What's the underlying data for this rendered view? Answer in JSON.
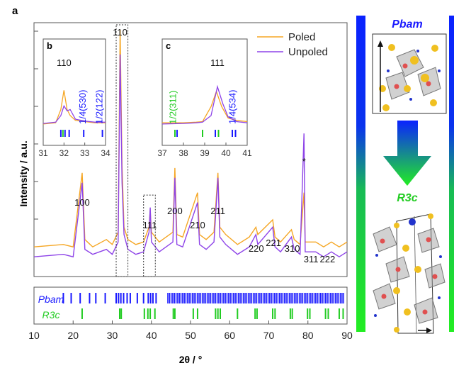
{
  "chart_data": {
    "type": "line",
    "panel_letter": "a",
    "xlabel": "2θ / °",
    "ylabel": "Intensity / a.u.",
    "xlim": [
      10,
      90
    ],
    "x_ticks": [
      "10",
      "20",
      "30",
      "40",
      "50",
      "60",
      "70",
      "80",
      "90"
    ],
    "grid": false,
    "legend": {
      "position": "top-right",
      "entries": [
        {
          "name": "Poled",
          "color": "#f5a623"
        },
        {
          "name": "Unpoled",
          "color": "#8e44e8"
        }
      ]
    },
    "series": [
      {
        "name": "Poled",
        "color": "#f5a623",
        "points": [
          [
            10,
            0.12
          ],
          [
            17.5,
            0.13
          ],
          [
            20,
            0.12
          ],
          [
            22.3,
            0.42
          ],
          [
            23,
            0.15
          ],
          [
            25,
            0.12
          ],
          [
            28.5,
            0.15
          ],
          [
            30,
            0.13
          ],
          [
            31.5,
            0.18
          ],
          [
            32,
            1.0
          ],
          [
            32.5,
            0.45
          ],
          [
            33,
            0.2
          ],
          [
            34,
            0.15
          ],
          [
            36,
            0.13
          ],
          [
            38,
            0.14
          ],
          [
            39.4,
            0.2
          ],
          [
            39.7,
            0.27
          ],
          [
            40,
            0.18
          ],
          [
            42,
            0.14
          ],
          [
            45.5,
            0.18
          ],
          [
            46,
            0.44
          ],
          [
            46.5,
            0.17
          ],
          [
            48,
            0.16
          ],
          [
            51.8,
            0.34
          ],
          [
            52.3,
            0.17
          ],
          [
            54,
            0.15
          ],
          [
            56,
            0.18
          ],
          [
            57,
            0.42
          ],
          [
            57.5,
            0.2
          ],
          [
            59,
            0.17
          ],
          [
            62,
            0.13
          ],
          [
            65,
            0.16
          ],
          [
            66.7,
            0.2
          ],
          [
            67.2,
            0.17
          ],
          [
            71,
            0.23
          ],
          [
            71.6,
            0.16
          ],
          [
            73,
            0.14
          ],
          [
            75.8,
            0.19
          ],
          [
            76.5,
            0.15
          ],
          [
            78,
            0.13
          ],
          [
            79,
            0.34
          ],
          [
            79.3,
            0.14
          ],
          [
            82,
            0.14
          ],
          [
            84,
            0.12
          ],
          [
            86,
            0.14
          ],
          [
            88,
            0.12
          ],
          [
            90,
            0.14
          ]
        ]
      },
      {
        "name": "Unpoled",
        "color": "#8e44e8",
        "points": [
          [
            10,
            0.08
          ],
          [
            17.5,
            0.09
          ],
          [
            20,
            0.08
          ],
          [
            22.3,
            0.38
          ],
          [
            23,
            0.11
          ],
          [
            25,
            0.09
          ],
          [
            28.5,
            0.11
          ],
          [
            30,
            0.09
          ],
          [
            31.5,
            0.14
          ],
          [
            32,
            0.9
          ],
          [
            32.5,
            0.38
          ],
          [
            33,
            0.17
          ],
          [
            34,
            0.11
          ],
          [
            36,
            0.09
          ],
          [
            38,
            0.1
          ],
          [
            39.4,
            0.18
          ],
          [
            39.7,
            0.28
          ],
          [
            40,
            0.14
          ],
          [
            42,
            0.1
          ],
          [
            45.5,
            0.14
          ],
          [
            46,
            0.4
          ],
          [
            46.5,
            0.13
          ],
          [
            48,
            0.12
          ],
          [
            51.8,
            0.3
          ],
          [
            52.3,
            0.13
          ],
          [
            54,
            0.11
          ],
          [
            56,
            0.14
          ],
          [
            57,
            0.4
          ],
          [
            57.5,
            0.16
          ],
          [
            59,
            0.13
          ],
          [
            62,
            0.09
          ],
          [
            65,
            0.12
          ],
          [
            66.7,
            0.17
          ],
          [
            67.2,
            0.13
          ],
          [
            71,
            0.2
          ],
          [
            71.6,
            0.12
          ],
          [
            73,
            0.1
          ],
          [
            75.8,
            0.16
          ],
          [
            76.5,
            0.11
          ],
          [
            78,
            0.09
          ],
          [
            79,
            0.58
          ],
          [
            79.3,
            0.1
          ],
          [
            82,
            0.1
          ],
          [
            84,
            0.08
          ],
          [
            86,
            0.1
          ],
          [
            88,
            0.08
          ],
          [
            90,
            0.1
          ]
        ]
      }
    ],
    "peak_labels": [
      {
        "text": "100",
        "x": 22.3
      },
      {
        "text": "110",
        "x": 32.0
      },
      {
        "text": "111",
        "x": 39.6
      },
      {
        "text": "200",
        "x": 46.0
      },
      {
        "text": "210",
        "x": 51.8
      },
      {
        "text": "211",
        "x": 57.0
      },
      {
        "text": "220",
        "x": 66.8
      },
      {
        "text": "221",
        "x": 71.2
      },
      {
        "text": "310",
        "x": 76.0
      },
      {
        "text": "*",
        "x": 79.0
      },
      {
        "text": "311",
        "x": 80.8
      },
      {
        "text": "222",
        "x": 85.0
      }
    ],
    "reference_patterns": [
      {
        "name": "Pbam",
        "color": "#1a1aff",
        "positions": [
          17.5,
          19.5,
          21.8,
          24.2,
          25.8,
          28.2,
          31.0,
          31.6,
          32.2,
          32.9,
          33.8,
          34.6,
          36.4,
          38.0,
          39.2,
          39.8,
          40.4,
          41.2
        ]
      },
      {
        "name": "R3c",
        "color": "#22cc22",
        "positions": [
          22.3,
          31.9,
          32.3,
          38.2,
          39.1,
          39.7,
          40.9,
          45.6,
          46.0,
          50.7,
          51.8,
          56.4,
          57.0,
          57.6,
          62.0,
          66.5,
          67.0,
          71.0,
          71.6,
          75.5,
          76.0,
          79.9,
          80.5,
          84.5,
          85.2,
          88.0,
          89.0
        ]
      }
    ],
    "insets": [
      {
        "letter": "b",
        "xlim": [
          31,
          34
        ],
        "x_ticks": [
          "31",
          "32",
          "33",
          "34"
        ],
        "labels": [
          {
            "text": "110",
            "color": "#111111"
          },
          {
            "text": "1/4(530)",
            "color": "#1a1aff"
          },
          {
            "text": "1/2(122)",
            "color": "#1a1aff"
          }
        ]
      },
      {
        "letter": "c",
        "xlim": [
          37,
          41
        ],
        "x_ticks": [
          "37",
          "38",
          "39",
          "40",
          "41"
        ],
        "labels": [
          {
            "text": "1/2(311)",
            "color": "#22cc22"
          },
          {
            "text": "111",
            "color": "#111111"
          },
          {
            "text": "1/4(534)",
            "color": "#1a1aff"
          }
        ]
      }
    ]
  },
  "structures": {
    "top_label": "Pbam",
    "bottom_label": "R3c"
  },
  "colors": {
    "poled": "#f5a623",
    "unpoled": "#8e44e8",
    "pbam_blue": "#1a1aff",
    "r3c_green": "#22cc22"
  }
}
